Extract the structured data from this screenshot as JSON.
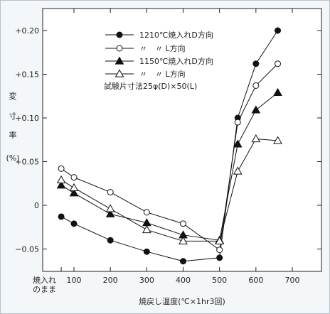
{
  "chart_data": {
    "type": "line",
    "xlabel": "焼戻し温度(℃×1hr3回)",
    "ylabel_chars": [
      "変",
      "寸",
      "率",
      "(%)"
    ],
    "x_zero_label": [
      "焼入れ",
      "のまま"
    ],
    "xlim": [
      50,
      750
    ],
    "ylim": [
      -0.075,
      0.21
    ],
    "x_ticks": [
      100,
      200,
      300,
      400,
      500,
      600,
      700
    ],
    "y_ticks": [
      {
        "value": 0.2,
        "label": "+0.20"
      },
      {
        "value": 0.15,
        "label": "+0.15"
      },
      {
        "value": 0.1,
        "label": "+0.10"
      },
      {
        "value": 0.05,
        "label": "+0.05"
      },
      {
        "value": 0.0,
        "label": "0"
      },
      {
        "value": -0.05,
        "label": "−0.05"
      }
    ],
    "x": [
      65,
      100,
      200,
      300,
      400,
      500,
      550,
      600,
      660
    ],
    "series": [
      {
        "name": "1210℃焼入れD方向",
        "marker": "filled-circle",
        "values": [
          -0.013,
          -0.021,
          -0.04,
          -0.053,
          -0.064,
          -0.06,
          0.1,
          0.162,
          0.2
        ]
      },
      {
        "name": "〃　〃 L方向",
        "marker": "open-circle",
        "values": [
          0.042,
          0.032,
          0.015,
          -0.008,
          -0.021,
          -0.051,
          0.095,
          0.137,
          0.162
        ]
      },
      {
        "name": "1150℃焼入れD方向",
        "marker": "filled-triangle",
        "values": [
          0.023,
          0.014,
          -0.01,
          -0.02,
          -0.034,
          -0.04,
          0.07,
          0.109,
          0.129
        ]
      },
      {
        "name": "〃　〃 L方向",
        "marker": "open-triangle",
        "values": [
          0.029,
          0.02,
          -0.004,
          -0.028,
          -0.041,
          -0.041,
          0.039,
          0.076,
          0.074
        ]
      }
    ],
    "note": "試験片寸法25φ(D)×50(L)",
    "grid": false,
    "legend_position": "top-center"
  }
}
